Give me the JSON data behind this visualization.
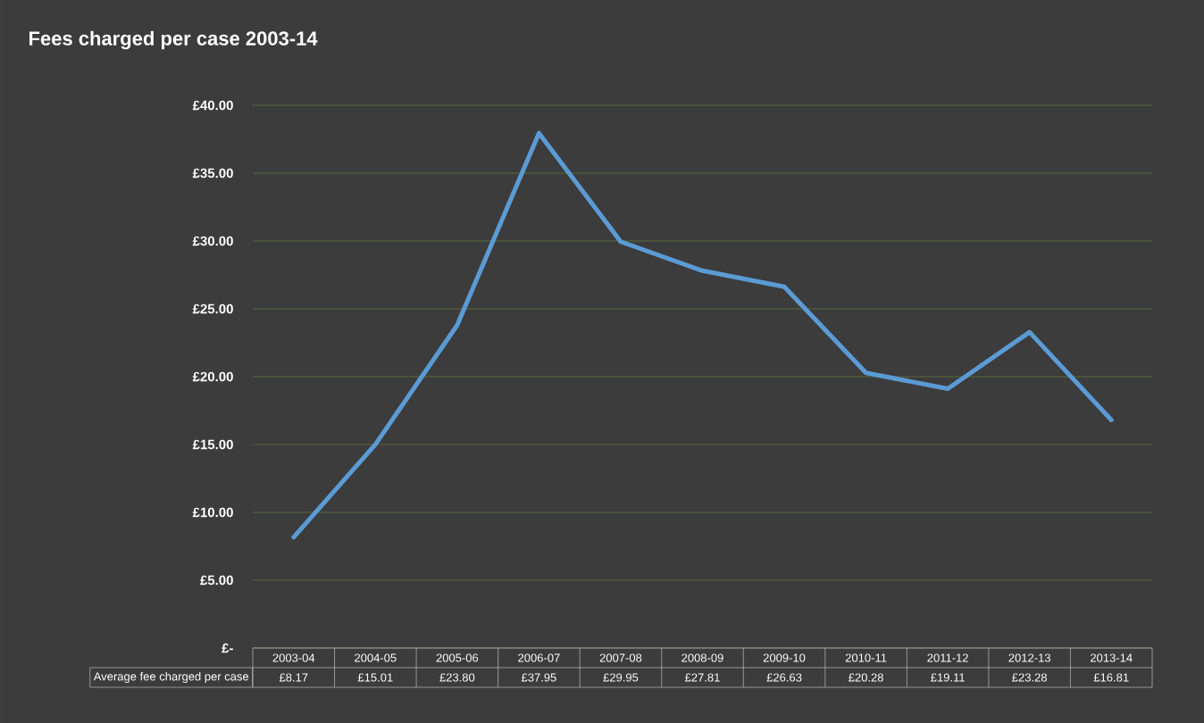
{
  "chart_data": {
    "type": "line",
    "title": "Fees charged per case 2003-14",
    "categories": [
      "2003-04",
      "2004-05",
      "2005-06",
      "2006-07",
      "2007-08",
      "2008-09",
      "2009-10",
      "2010-11",
      "2011-12",
      "2012-13",
      "2013-14"
    ],
    "series": [
      {
        "name": "Average fee charged per case",
        "color": "#5b9bd5",
        "values": [
          8.17,
          15.01,
          23.8,
          37.95,
          29.95,
          27.81,
          26.63,
          20.28,
          19.11,
          23.28,
          16.81
        ],
        "value_labels": [
          "£8.17",
          "£15.01",
          "£23.80",
          "£37.95",
          "£29.95",
          "£27.81",
          "£26.63",
          "£20.28",
          "£19.11",
          "£23.28",
          "£16.81"
        ]
      }
    ],
    "ylim": [
      0,
      40
    ],
    "yticks": [
      {
        "value": 0,
        "label": "£-"
      },
      {
        "value": 5,
        "label": "£5.00"
      },
      {
        "value": 10,
        "label": "£10.00"
      },
      {
        "value": 15,
        "label": "£15.00"
      },
      {
        "value": 20,
        "label": "£20.00"
      },
      {
        "value": 25,
        "label": "£25.00"
      },
      {
        "value": 30,
        "label": "£30.00"
      },
      {
        "value": 35,
        "label": "£35.00"
      },
      {
        "value": 40,
        "label": "£40.00"
      }
    ],
    "grid": "y"
  }
}
